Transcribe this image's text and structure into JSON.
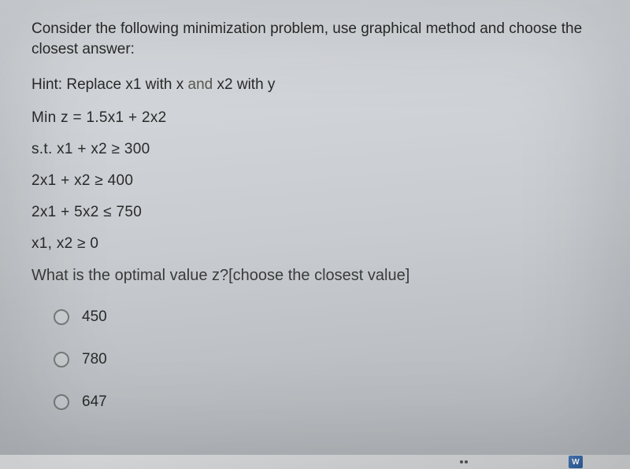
{
  "question": {
    "prompt_line1": "Consider the following minimization problem, use graphical method and choose the",
    "prompt_line2": "closest answer:",
    "hint_prefix": "Hint: Replace x1 with x ",
    "hint_and": "and",
    "hint_suffix": " x2 with y",
    "objective": "Min z = 1.5x1 + 2x2",
    "constraints": [
      "s.t. x1 + x2 ≥ 300",
      "2x1 + x2 ≥ 400",
      "2x1 + 5x2 ≤ 750",
      "x1, x2 ≥ 0"
    ],
    "final_prompt": "What is the optimal value z?[choose the closest value]"
  },
  "options": [
    {
      "label": "450"
    },
    {
      "label": "780"
    },
    {
      "label": "647"
    }
  ],
  "taskbar": {
    "word_icon": "W"
  },
  "styling": {
    "bg_gradient_start": "#d8dce0",
    "bg_gradient_mid": "#c8ccd0",
    "bg_gradient_end": "#b0b4b8",
    "text_color": "#2a2a2a",
    "hint_and_color": "#5a5850",
    "radio_border": "#7a7a7a",
    "font_size_main": 19,
    "font_size_prompt": 20,
    "option_spacing": 32,
    "equation_spacing": 18
  }
}
